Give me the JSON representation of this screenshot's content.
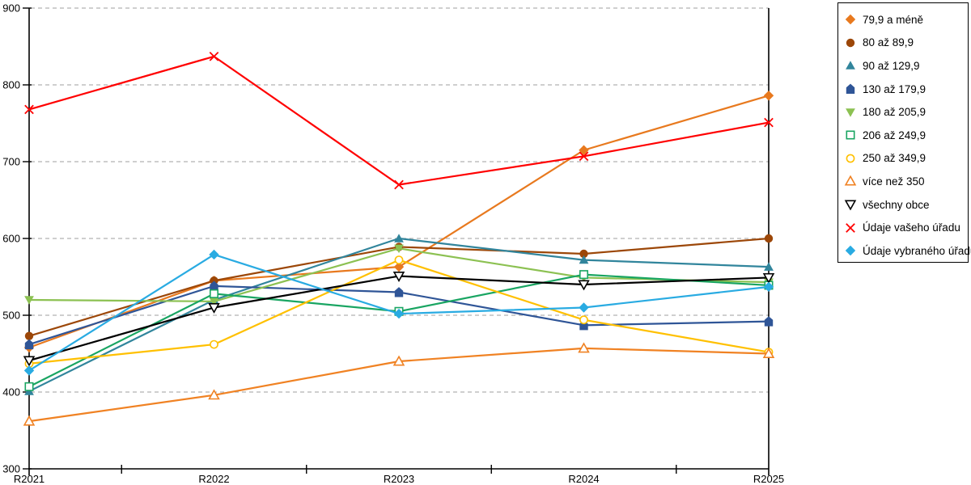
{
  "chart_data": {
    "type": "line",
    "title": "",
    "xlabel": "",
    "ylabel": "",
    "categories": [
      "R2021",
      "R2022",
      "R2023",
      "R2024",
      "R2025"
    ],
    "ylim": [
      300,
      900
    ],
    "ytick_step": 100,
    "y_tick_labels": [
      "300",
      "400",
      "500",
      "600",
      "700",
      "800",
      "900"
    ],
    "grid": "horizontal-dashed",
    "legend_position": "right",
    "series": [
      {
        "name": "79,9 a méně",
        "marker": "diamond",
        "fill": "filled",
        "color": "#E8791E",
        "values": [
          458,
          545,
          563,
          715,
          786
        ]
      },
      {
        "name": "80 až 89,9",
        "marker": "circle",
        "fill": "filled",
        "color": "#9C4708",
        "values": [
          473,
          545,
          589,
          580,
          600
        ]
      },
      {
        "name": "90 až 129,9",
        "marker": "triangle-up",
        "fill": "filled",
        "color": "#31859C",
        "values": [
          401,
          520,
          600,
          572,
          563
        ]
      },
      {
        "name": "130 až 179,9",
        "marker": "pentagon",
        "fill": "filled",
        "color": "#2F5597",
        "values": [
          462,
          538,
          530,
          487,
          492
        ]
      },
      {
        "name": "180 až 205,9",
        "marker": "triangle-down",
        "fill": "filled",
        "color": "#8CC152",
        "values": [
          520,
          518,
          587,
          549,
          543
        ]
      },
      {
        "name": "206 až 249,9",
        "marker": "square",
        "fill": "open",
        "color": "#19A562",
        "values": [
          407,
          528,
          505,
          553,
          539
        ]
      },
      {
        "name": "250 až 349,9",
        "marker": "circle",
        "fill": "open",
        "color": "#FFC000",
        "values": [
          437,
          462,
          572,
          494,
          452
        ]
      },
      {
        "name": "více než 350",
        "marker": "triangle-up",
        "fill": "open",
        "color": "#F08223",
        "values": [
          362,
          396,
          440,
          457,
          450
        ]
      },
      {
        "name": "všechny obce",
        "marker": "triangle-down",
        "fill": "open",
        "color": "#000000",
        "values": [
          441,
          510,
          551,
          540,
          549
        ]
      },
      {
        "name": "Údaje vašeho úřadu",
        "marker": "x",
        "fill": "line",
        "color": "#FF0000",
        "values": [
          768,
          837,
          670,
          707,
          751
        ]
      },
      {
        "name": "Údaje vybraného úřadu",
        "marker": "diamond",
        "fill": "filled",
        "color": "#29ABE2",
        "values": [
          428,
          579,
          502,
          510,
          537
        ]
      }
    ],
    "grid_color": "#B2B2B2",
    "axis_color": "#000000"
  }
}
